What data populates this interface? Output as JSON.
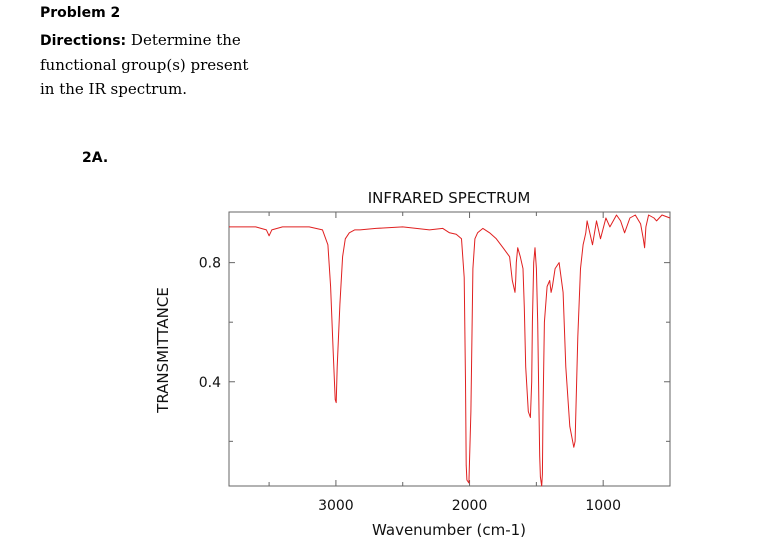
{
  "problem": {
    "title": "Problem 2",
    "directions_label": "Directions:",
    "directions_text": "Determine the functional group(s) present in the IR spectrum.",
    "sub_label": "2A."
  },
  "chart_data": {
    "type": "line",
    "title": "INFRARED SPECTRUM",
    "xlabel": "Wavenumber (cm-1)",
    "ylabel": "TRANSMITTANCE",
    "xlim": [
      3800,
      500
    ],
    "ylim": [
      0.05,
      0.97
    ],
    "x_ticks": [
      3000,
      2000,
      1000
    ],
    "y_ticks": [
      0.4,
      0.8
    ],
    "x_tick_labels": [
      "3000",
      "2000",
      "1000"
    ],
    "y_tick_labels": [
      "0.4",
      "0.8"
    ],
    "line_color": "#e02020",
    "series": [
      {
        "name": "spectrum",
        "x": [
          3800,
          3600,
          3520,
          3500,
          3480,
          3400,
          3200,
          3100,
          3060,
          3040,
          3020,
          3005,
          2998,
          2990,
          2970,
          2950,
          2930,
          2900,
          2860,
          2820,
          2700,
          2500,
          2300,
          2200,
          2150,
          2100,
          2060,
          2040,
          2030,
          2025,
          2020,
          2005,
          1990,
          1975,
          1960,
          1940,
          1900,
          1850,
          1800,
          1750,
          1700,
          1680,
          1660,
          1655,
          1650,
          1640,
          1620,
          1600,
          1590,
          1580,
          1560,
          1545,
          1535,
          1530,
          1520,
          1510,
          1500,
          1490,
          1480,
          1475,
          1470,
          1460,
          1455,
          1450,
          1440,
          1420,
          1400,
          1390,
          1380,
          1360,
          1330,
          1300,
          1280,
          1250,
          1220,
          1210,
          1190,
          1170,
          1150,
          1140,
          1130,
          1120,
          1100,
          1080,
          1050,
          1020,
          980,
          950,
          900,
          870,
          840,
          800,
          760,
          720,
          700,
          690,
          680,
          660,
          620,
          600,
          560,
          530,
          500
        ],
        "y": [
          0.92,
          0.92,
          0.91,
          0.89,
          0.91,
          0.92,
          0.92,
          0.91,
          0.86,
          0.72,
          0.5,
          0.34,
          0.33,
          0.45,
          0.66,
          0.82,
          0.88,
          0.9,
          0.91,
          0.91,
          0.915,
          0.92,
          0.91,
          0.915,
          0.9,
          0.895,
          0.88,
          0.75,
          0.4,
          0.12,
          0.07,
          0.06,
          0.3,
          0.78,
          0.88,
          0.9,
          0.915,
          0.9,
          0.88,
          0.85,
          0.82,
          0.74,
          0.7,
          0.74,
          0.8,
          0.85,
          0.82,
          0.78,
          0.65,
          0.45,
          0.3,
          0.28,
          0.4,
          0.6,
          0.8,
          0.85,
          0.78,
          0.6,
          0.3,
          0.15,
          0.08,
          0.05,
          0.09,
          0.3,
          0.6,
          0.72,
          0.74,
          0.7,
          0.72,
          0.78,
          0.8,
          0.7,
          0.45,
          0.25,
          0.18,
          0.2,
          0.55,
          0.78,
          0.86,
          0.88,
          0.9,
          0.94,
          0.9,
          0.86,
          0.94,
          0.88,
          0.95,
          0.92,
          0.96,
          0.94,
          0.9,
          0.95,
          0.96,
          0.93,
          0.88,
          0.85,
          0.92,
          0.96,
          0.95,
          0.94,
          0.96,
          0.955,
          0.95
        ]
      }
    ]
  }
}
